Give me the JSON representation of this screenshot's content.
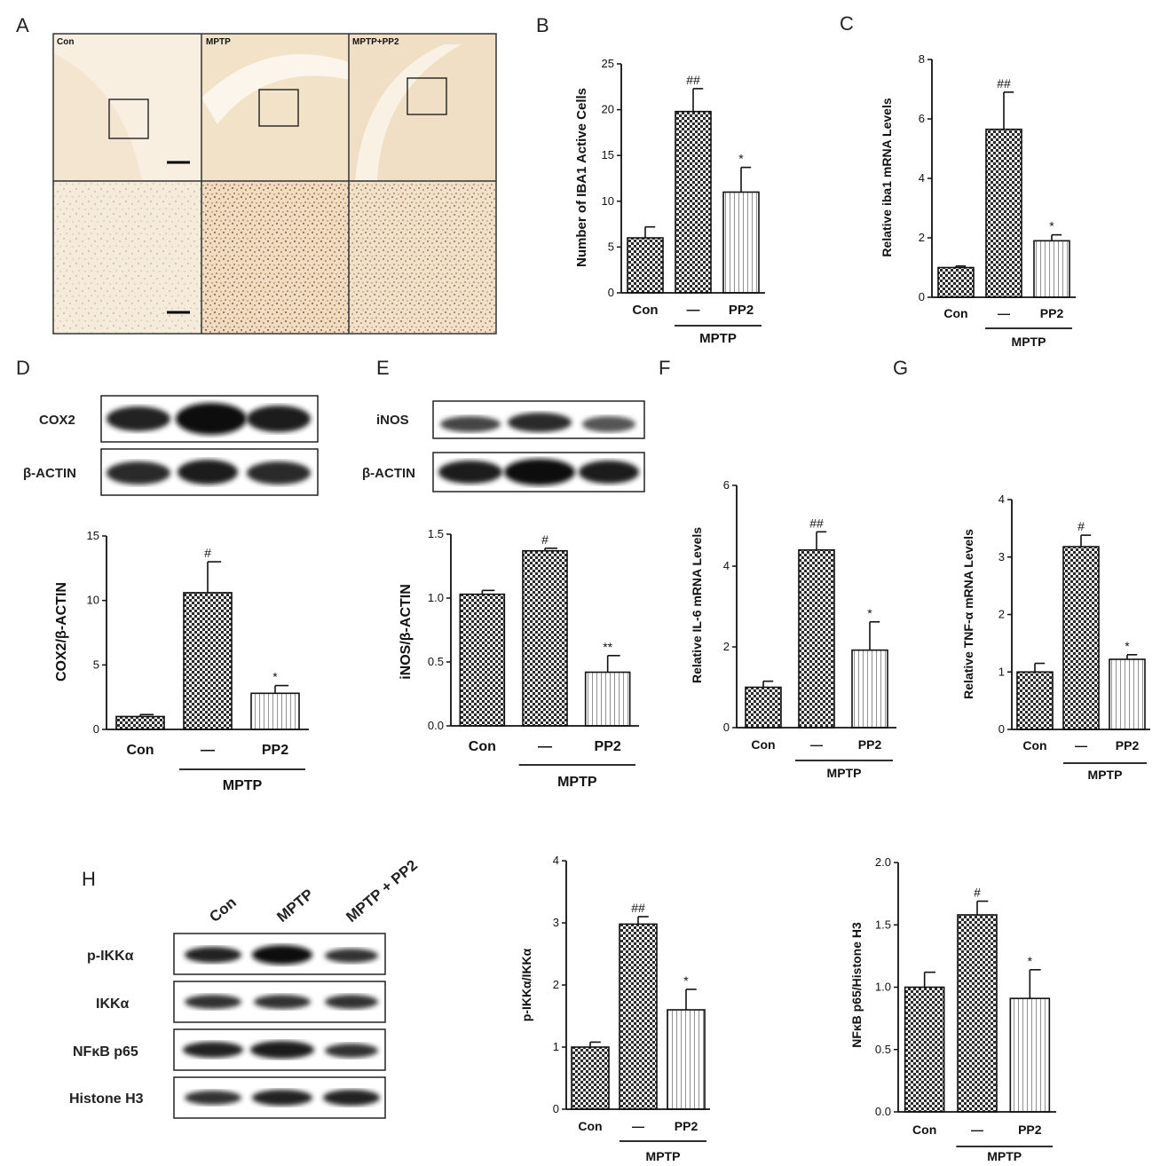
{
  "panel_letters": [
    "A",
    "B",
    "C",
    "D",
    "E",
    "F",
    "G",
    "H"
  ],
  "panelA": {
    "columns": [
      "Con",
      "MPTP",
      "MPTP+PP2"
    ]
  },
  "blots": {
    "D": {
      "rows": [
        "COX2",
        "β-ACTIN"
      ]
    },
    "E": {
      "rows": [
        "iNOS",
        "β-ACTIN"
      ]
    },
    "H": {
      "columns": [
        "Con",
        "MPTP",
        "MPTP + PP2"
      ],
      "rows": [
        "p-IKKα",
        "IKKα",
        "NFκB p65",
        "Histone H3"
      ]
    }
  },
  "chart_data": [
    {
      "id": "B",
      "type": "bar",
      "ylabel": "Number of IBA1 Active Cells",
      "categories": [
        "Con",
        "—",
        "PP2"
      ],
      "group_label": "MPTP",
      "values": [
        6,
        19.8,
        11
      ],
      "errors": [
        1.2,
        2.5,
        2.7
      ],
      "significance": [
        "",
        "##",
        "*"
      ],
      "ylim": [
        0,
        25
      ],
      "yticks": [
        0,
        5,
        10,
        15,
        20,
        25
      ],
      "ytick_labels": [
        "0",
        "5",
        "10",
        "15",
        "20",
        "25"
      ]
    },
    {
      "id": "C",
      "type": "bar",
      "ylabel": "Relative iba1 mRNA Levels",
      "categories": [
        "Con",
        "—",
        "PP2"
      ],
      "group_label": "MPTP",
      "values": [
        1.0,
        5.65,
        1.9
      ],
      "errors": [
        0.05,
        1.25,
        0.2
      ],
      "significance": [
        "",
        "##",
        "*"
      ],
      "ylim": [
        0,
        8
      ],
      "yticks": [
        0,
        2,
        4,
        6,
        8
      ],
      "ytick_labels": [
        "0",
        "2",
        "4",
        "6",
        "8"
      ]
    },
    {
      "id": "D",
      "type": "bar",
      "ylabel": "COX2/β-ACTIN",
      "categories": [
        "Con",
        "—",
        "PP2"
      ],
      "group_label": "MPTP",
      "values": [
        1.0,
        10.6,
        2.8
      ],
      "errors": [
        0.15,
        2.4,
        0.6
      ],
      "significance": [
        "",
        "#",
        "*"
      ],
      "ylim": [
        0,
        15
      ],
      "yticks": [
        0,
        5,
        10,
        15
      ],
      "ytick_labels": [
        "0",
        "5",
        "10",
        "15"
      ]
    },
    {
      "id": "E",
      "type": "bar",
      "ylabel": "iNOS/β-ACTIN",
      "categories": [
        "Con",
        "—",
        "PP2"
      ],
      "group_label": "MPTP",
      "values": [
        1.03,
        1.37,
        0.42
      ],
      "errors": [
        0.03,
        0.02,
        0.13
      ],
      "significance": [
        "",
        "#",
        "**"
      ],
      "ylim": [
        0,
        1.5
      ],
      "yticks": [
        0,
        0.5,
        1.0,
        1.5
      ],
      "ytick_labels": [
        "0.0",
        "0.5",
        "1.0",
        "1.5"
      ]
    },
    {
      "id": "F",
      "type": "bar",
      "ylabel": "Relative IL-6 mRNA Levels",
      "categories": [
        "Con",
        "—",
        "PP2"
      ],
      "group_label": "MPTP",
      "values": [
        1.0,
        4.4,
        1.92
      ],
      "errors": [
        0.15,
        0.45,
        0.7
      ],
      "significance": [
        "",
        "##",
        "*"
      ],
      "ylim": [
        0,
        6
      ],
      "yticks": [
        0,
        2,
        4,
        6
      ],
      "ytick_labels": [
        "0",
        "2",
        "4",
        "6"
      ]
    },
    {
      "id": "G",
      "type": "bar",
      "ylabel": "Relative TNF-α mRNA Levels",
      "categories": [
        "Con",
        "—",
        "PP2"
      ],
      "group_label": "MPTP",
      "values": [
        1.0,
        3.18,
        1.22
      ],
      "errors": [
        0.15,
        0.2,
        0.08
      ],
      "significance": [
        "",
        "#",
        "*"
      ],
      "ylim": [
        0,
        4
      ],
      "yticks": [
        0,
        1,
        2,
        3,
        4
      ],
      "ytick_labels": [
        "0",
        "1",
        "2",
        "3",
        "4"
      ]
    },
    {
      "id": "H1",
      "type": "bar",
      "ylabel": "p-IKKα/IKKα",
      "categories": [
        "Con",
        "—",
        "PP2"
      ],
      "group_label": "MPTP",
      "values": [
        1.0,
        2.98,
        1.6
      ],
      "errors": [
        0.08,
        0.12,
        0.33
      ],
      "significance": [
        "",
        "##",
        "*"
      ],
      "ylim": [
        0,
        4
      ],
      "yticks": [
        0,
        1,
        2,
        3,
        4
      ],
      "ytick_labels": [
        "0",
        "1",
        "2",
        "3",
        "4"
      ]
    },
    {
      "id": "H2",
      "type": "bar",
      "ylabel": "NFκB p65/Histone H3",
      "categories": [
        "Con",
        "—",
        "PP2"
      ],
      "group_label": "MPTP",
      "values": [
        1.0,
        1.58,
        0.91
      ],
      "errors": [
        0.12,
        0.11,
        0.23
      ],
      "significance": [
        "",
        "#",
        "*"
      ],
      "ylim": [
        0,
        2.0
      ],
      "yticks": [
        0,
        0.5,
        1.0,
        1.5,
        2.0
      ],
      "ytick_labels": [
        "0.0",
        "0.5",
        "1.0",
        "1.5",
        "2.0"
      ]
    }
  ]
}
